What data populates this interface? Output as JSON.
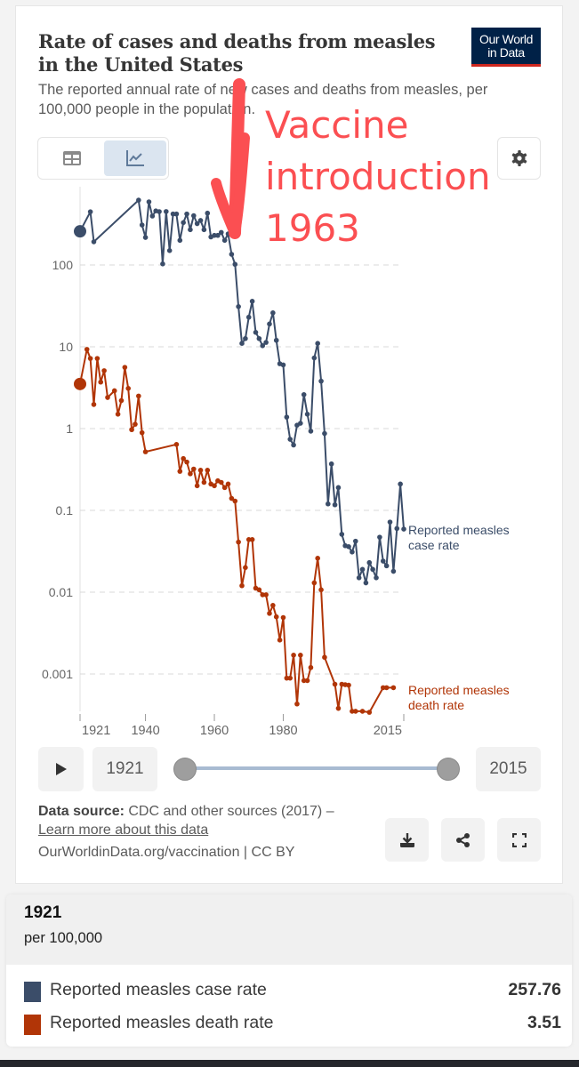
{
  "header": {
    "title": "Rate of cases and deaths from measles in the United States",
    "subtitle": "The reported annual rate of new cases and deaths from measles, per 100,000 people in the population.",
    "logo_line1": "Our World",
    "logo_line2": "in Data"
  },
  "tabs": [
    {
      "name": "table",
      "icon": "table-icon",
      "active": false
    },
    {
      "name": "chart",
      "icon": "line-chart-icon",
      "active": true
    }
  ],
  "settings_icon": "gear-icon",
  "annotation": {
    "lines": [
      "Vaccine",
      "introduction",
      "1963"
    ],
    "color": "#fb4f52"
  },
  "chart_data": {
    "type": "line",
    "title": "Rate of cases and deaths from measles in the United States",
    "yscale": "log",
    "ylim": [
      0.0003,
      700
    ],
    "xlim": [
      1921,
      2015
    ],
    "y_ticks": [
      {
        "value": 100,
        "label": "100"
      },
      {
        "value": 10,
        "label": "10"
      },
      {
        "value": 1,
        "label": "1"
      },
      {
        "value": 0.1,
        "label": "0.1"
      },
      {
        "value": 0.01,
        "label": "0.01"
      },
      {
        "value": 0.001,
        "label": "0.001"
      }
    ],
    "x_ticks": [
      {
        "value": 1921,
        "label": "1921"
      },
      {
        "value": 1940,
        "label": "1940"
      },
      {
        "value": 1960,
        "label": "1960"
      },
      {
        "value": 1980,
        "label": "1980"
      },
      {
        "value": 2015,
        "label": "2015"
      }
    ],
    "grid": "horizontal-dashed",
    "legend": "inline-right",
    "series": [
      {
        "name": "Reported measles case rate",
        "label_lines": [
          "Reported measles",
          "case rate"
        ],
        "color": "#3b4d69",
        "points": [
          [
            1921,
            257.76
          ],
          [
            1924,
            447
          ],
          [
            1925,
            192
          ],
          [
            1938,
            620
          ],
          [
            1939,
            308
          ],
          [
            1940,
            217
          ],
          [
            1941,
            591
          ],
          [
            1942,
            396
          ],
          [
            1943,
            458
          ],
          [
            1944,
            449
          ],
          [
            1945,
            103
          ],
          [
            1946,
            450
          ],
          [
            1947,
            150
          ],
          [
            1948,
            420
          ],
          [
            1949,
            420
          ],
          [
            1950,
            200
          ],
          [
            1951,
            330
          ],
          [
            1952,
            420
          ],
          [
            1953,
            270
          ],
          [
            1954,
            400
          ],
          [
            1955,
            320
          ],
          [
            1956,
            350
          ],
          [
            1957,
            270
          ],
          [
            1958,
            430
          ],
          [
            1959,
            220
          ],
          [
            1960,
            230
          ],
          [
            1961,
            230
          ],
          [
            1962,
            250
          ],
          [
            1963,
            200
          ],
          [
            1964,
            240
          ],
          [
            1965,
            135
          ],
          [
            1966,
            102
          ],
          [
            1967,
            31
          ],
          [
            1968,
            11
          ],
          [
            1969,
            12.6
          ],
          [
            1970,
            23
          ],
          [
            1971,
            36
          ],
          [
            1972,
            15
          ],
          [
            1973,
            12.6
          ],
          [
            1974,
            10.3
          ],
          [
            1975,
            11.3
          ],
          [
            1976,
            19
          ],
          [
            1977,
            26
          ],
          [
            1978,
            12
          ],
          [
            1979,
            6.2
          ],
          [
            1980,
            6
          ],
          [
            1981,
            1.38
          ],
          [
            1982,
            0.74
          ],
          [
            1983,
            0.63
          ],
          [
            1984,
            1.1
          ],
          [
            1985,
            1.16
          ],
          [
            1986,
            2.6
          ],
          [
            1987,
            1.5
          ],
          [
            1988,
            0.93
          ],
          [
            1989,
            7.3
          ],
          [
            1990,
            11
          ],
          [
            1991,
            3.8
          ],
          [
            1992,
            0.87
          ],
          [
            1993,
            0.12
          ],
          [
            1994,
            0.37
          ],
          [
            1995,
            0.117
          ],
          [
            1996,
            0.19
          ],
          [
            1997,
            0.051
          ],
          [
            1998,
            0.037
          ],
          [
            1999,
            0.036
          ],
          [
            2000,
            0.031
          ],
          [
            2001,
            0.042
          ],
          [
            2002,
            0.015
          ],
          [
            2003,
            0.019
          ],
          [
            2004,
            0.013
          ],
          [
            2005,
            0.023
          ],
          [
            2006,
            0.019
          ],
          [
            2007,
            0.015
          ],
          [
            2008,
            0.047
          ],
          [
            2009,
            0.024
          ],
          [
            2010,
            0.021
          ],
          [
            2011,
            0.072
          ],
          [
            2012,
            0.018
          ],
          [
            2013,
            0.06
          ],
          [
            2014,
            0.21
          ],
          [
            2015,
            0.059
          ]
        ]
      },
      {
        "name": "Reported measles death rate",
        "label_lines": [
          "Reported measles",
          "death rate"
        ],
        "color": "#b13507",
        "points": [
          [
            1921,
            3.51
          ],
          [
            1923,
            9.3
          ],
          [
            1924,
            7.2
          ],
          [
            1925,
            1.97
          ],
          [
            1926,
            7.2
          ],
          [
            1927,
            3.7
          ],
          [
            1928,
            5.1
          ],
          [
            1929,
            2.4
          ],
          [
            1931,
            2.9
          ],
          [
            1932,
            1.5
          ],
          [
            1933,
            2.2
          ],
          [
            1934,
            5.6
          ],
          [
            1935,
            3.1
          ],
          [
            1936,
            0.97
          ],
          [
            1937,
            1.13
          ],
          [
            1938,
            2.5
          ],
          [
            1939,
            0.89
          ],
          [
            1940,
            0.52
          ],
          [
            1949,
            0.64
          ],
          [
            1950,
            0.3
          ],
          [
            1951,
            0.43
          ],
          [
            1952,
            0.39
          ],
          [
            1953,
            0.28
          ],
          [
            1954,
            0.32
          ],
          [
            1955,
            0.2
          ],
          [
            1956,
            0.31
          ],
          [
            1957,
            0.22
          ],
          [
            1958,
            0.31
          ],
          [
            1959,
            0.21
          ],
          [
            1960,
            0.2
          ],
          [
            1961,
            0.23
          ],
          [
            1962,
            0.22
          ],
          [
            1963,
            0.19
          ],
          [
            1964,
            0.21
          ],
          [
            1965,
            0.14
          ],
          [
            1966,
            0.13
          ],
          [
            1967,
            0.041
          ],
          [
            1968,
            0.012
          ],
          [
            1969,
            0.02
          ],
          [
            1970,
            0.044
          ],
          [
            1971,
            0.044
          ],
          [
            1972,
            0.0112
          ],
          [
            1973,
            0.0107
          ],
          [
            1974,
            0.0093
          ],
          [
            1975,
            0.0093
          ],
          [
            1976,
            0.0055
          ],
          [
            1977,
            0.0069
          ],
          [
            1978,
            0.005
          ],
          [
            1979,
            0.0026
          ],
          [
            1980,
            0.0049
          ],
          [
            1981,
            0.00089
          ],
          [
            1982,
            0.00089
          ],
          [
            1983,
            0.0017
          ],
          [
            1984,
            0.00043
          ],
          [
            1985,
            0.0017
          ],
          [
            1986,
            0.00083
          ],
          [
            1987,
            0.00083
          ],
          [
            1988,
            0.0012
          ],
          [
            1989,
            0.013
          ],
          [
            1990,
            0.026
          ],
          [
            1991,
            0.0107
          ],
          [
            1992,
            0.0016
          ],
          [
            1995,
            0.00075
          ],
          [
            1996,
            0.00038
          ],
          [
            1997,
            0.00075
          ],
          [
            1998,
            0.00074
          ],
          [
            1999,
            0.00073
          ],
          [
            2000,
            0.00035
          ],
          [
            2001,
            0.00035
          ],
          [
            2003,
            0.00035
          ],
          [
            2005,
            0.00034
          ],
          [
            2009,
            0.00068
          ],
          [
            2010,
            0.00068
          ],
          [
            2012,
            0.00068
          ]
        ]
      }
    ]
  },
  "timeline": {
    "start_year": "1921",
    "end_year": "2015",
    "play_icon": "play-icon"
  },
  "footer": {
    "source_label": "Data source:",
    "source_text": "CDC and other sources (2017) – ",
    "learn_more": "Learn more about this data",
    "url": "OurWorldinData.org/vaccination | CC BY",
    "buttons": [
      "download-icon",
      "share-icon",
      "fullscreen-icon"
    ]
  },
  "tooltip": {
    "year": "1921",
    "unit": "per 100,000",
    "rows": [
      {
        "label": "Reported measles case rate",
        "value": "257.76",
        "color": "#3b4d69"
      },
      {
        "label": "Reported measles death rate",
        "value": "3.51",
        "color": "#b13507"
      }
    ]
  }
}
